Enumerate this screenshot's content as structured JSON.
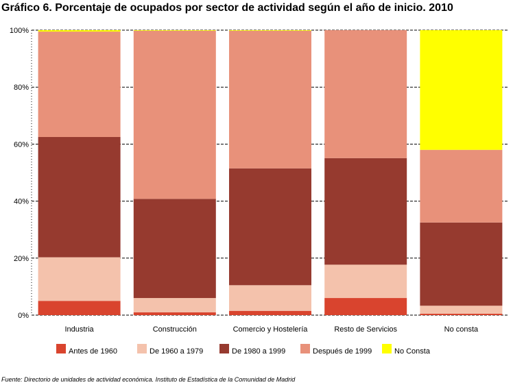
{
  "chart_data": {
    "type": "bar",
    "stacked": true,
    "title": "Gráfico 6. Porcentaje de ocupados por sector de actividad según el año de inicio. 2010",
    "source": "Fuente: Directorio de unidades de actividad económica. Instituto de Estadística de la Comunidad de Madrid",
    "categories": [
      "Industria",
      "Construcción",
      "Comercio y Hostelería",
      "Resto de Servicios",
      "No consta"
    ],
    "series": [
      {
        "name": "Antes de 1960",
        "color": "#d9442e",
        "values": [
          5.0,
          1.0,
          1.5,
          6.0,
          0.5
        ]
      },
      {
        "name": "De 1960 a 1979",
        "color": "#f4c2ac",
        "values": [
          15.3,
          5.0,
          9.0,
          11.7,
          2.8
        ]
      },
      {
        "name": "De 1980 a 1999",
        "color": "#963a2f",
        "values": [
          42.2,
          34.8,
          41.0,
          37.4,
          29.2
        ]
      },
      {
        "name": "Después de 1999",
        "color": "#e8917a",
        "values": [
          37.0,
          59.0,
          48.3,
          44.9,
          25.5
        ]
      },
      {
        "name": "No Consta",
        "color": "#ffff00",
        "values": [
          0.5,
          0.2,
          0.2,
          0.0,
          42.0
        ]
      }
    ],
    "ylim": [
      0,
      100
    ],
    "yticks": [
      "0%",
      "20%",
      "40%",
      "60%",
      "80%",
      "100%"
    ],
    "grid": true,
    "legend_position": "bottom"
  }
}
